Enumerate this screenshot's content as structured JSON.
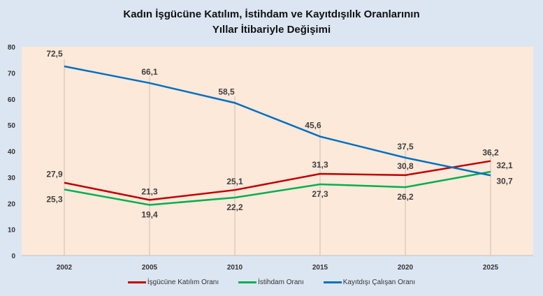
{
  "chart_data": {
    "type": "line",
    "title": [
      "Kadın İşgücüne Katılım, İstihdam ve Kayıtdışılık Oranlarının",
      "Yıllar İtibariyle Değişimi"
    ],
    "categories": [
      "2002",
      "2005",
      "2010",
      "2015",
      "2020",
      "2025"
    ],
    "ylim": [
      0,
      80
    ],
    "yticks": [
      "0",
      "10",
      "20",
      "30",
      "40",
      "50",
      "60",
      "70",
      "80"
    ],
    "series": [
      {
        "name": "İşgücüne Katılım Oranı",
        "color": "#c00000",
        "values": [
          27.9,
          21.3,
          25.1,
          31.3,
          30.8,
          36.2
        ],
        "labels": [
          "27,9",
          "21,3",
          "25,1",
          "31,3",
          "30,8",
          "36,2"
        ]
      },
      {
        "name": "İstihdam Oranı",
        "color": "#00b050",
        "values": [
          25.3,
          19.4,
          22.2,
          27.3,
          26.2,
          32.1
        ],
        "labels": [
          "25,3",
          "19,4",
          "22,2",
          "27,3",
          "26,2",
          "32,1"
        ]
      },
      {
        "name": "Kayıtdışı Çalışan Oranı",
        "color": "#0070c0",
        "values": [
          72.5,
          66.1,
          58.5,
          45.6,
          37.5,
          30.7
        ],
        "labels": [
          "72,5",
          "66,1",
          "58,5",
          "45,6",
          "37,5",
          "30,7"
        ]
      }
    ],
    "legend": "bottom"
  }
}
